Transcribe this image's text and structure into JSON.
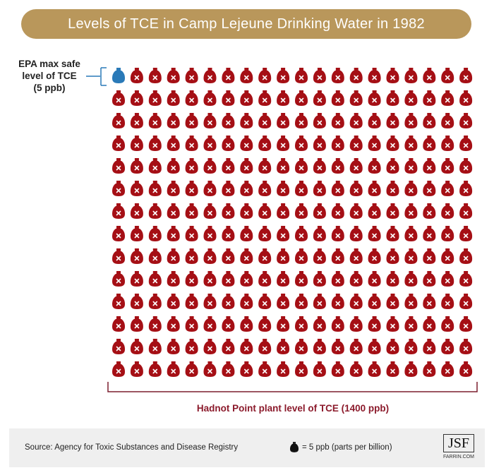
{
  "title": "Levels of TCE in Camp Lejeune Drinking Water in 1982",
  "epa_label": [
    "EPA max safe",
    "level of TCE",
    "(5 ppb)"
  ],
  "plant_label": "Hadnot Point plant level of TCE (1400 ppb)",
  "source": "Source: Agency for Toxic Substances and Disease Registry",
  "legend_text": "= 5 ppb (parts per billion)",
  "logo": {
    "mark": "JSF",
    "sub": "FARRIN.COM"
  },
  "colors": {
    "title_bg": "#b9975b",
    "contaminated": "#a50f15",
    "safe": "#2a7ab8",
    "bracket": "#7b1e2e"
  },
  "chart_data": {
    "type": "pictogram",
    "icon": "bottle-icon",
    "unit_value_ppb": 5,
    "series": [
      {
        "name": "EPA max safe level of TCE (5 ppb)",
        "value_ppb": 5,
        "icons": 1,
        "color": "#2a7ab8"
      },
      {
        "name": "Hadnot Point plant level of TCE (1400 ppb)",
        "value_ppb": 1400,
        "icons": 280,
        "color": "#a50f15"
      }
    ],
    "columns": 20,
    "rows": 14
  }
}
